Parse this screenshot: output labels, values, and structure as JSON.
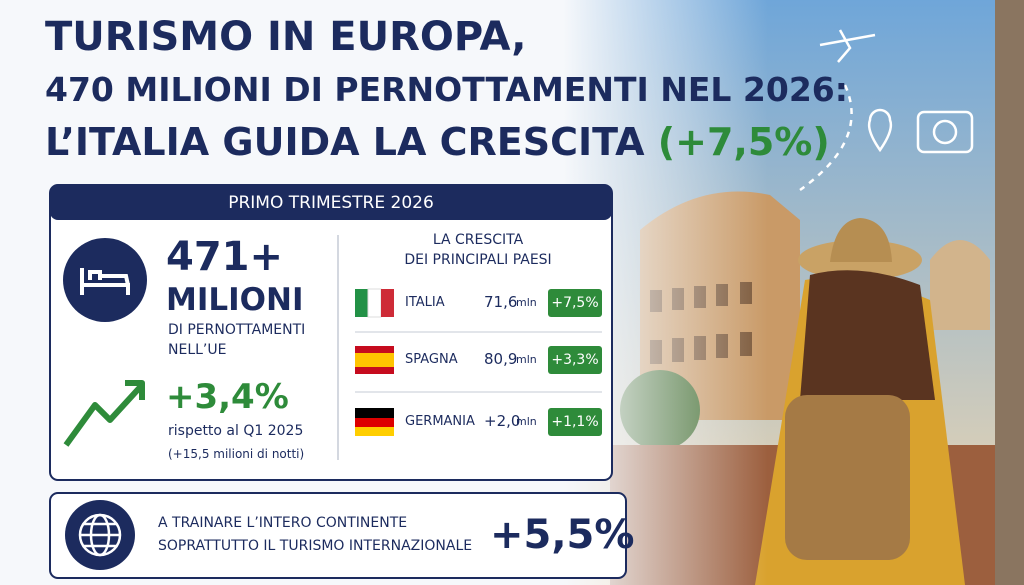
{
  "header": {
    "line1": "TURISMO IN EUROPA,",
    "line2": "470 MILIONI DI PERNOTTAMENTI NEL 2026:",
    "line3": "L’ITALIA GUIDA LA CRESCITA",
    "highlight": "(+7,5%)"
  },
  "panel": {
    "title": "PRIMO TRIMESTRE 2026",
    "total": {
      "value": "471+",
      "unit": "MILIONI",
      "desc1": "DI PERNOTTAMENTI",
      "desc2": "NELL’UE"
    },
    "growth": {
      "value": "+3,4%",
      "desc1": "rispetto al Q1 2025",
      "desc2": "(+15,5 milioni di notti)"
    },
    "countries": {
      "title1": "LA CRESCITA",
      "title2": "DEI PRINCIPALI PAESI",
      "rows": [
        {
          "name": "ITALIA",
          "value": "71,6",
          "unit": "mln",
          "change": "+7,5%"
        },
        {
          "name": "SPAGNA",
          "value": "80,9",
          "unit": "mln",
          "change": "+3,3%"
        },
        {
          "name": "GERMANIA",
          "value": "+2,0",
          "unit": "mln",
          "change": "+1,1%"
        }
      ]
    }
  },
  "footer": {
    "line1": "A TRAINARE L’INTERO CONTINENTE",
    "line2": "SOPRATTUTTO IL TURISMO INTERNAZIONALE",
    "value": "+5,5%"
  }
}
